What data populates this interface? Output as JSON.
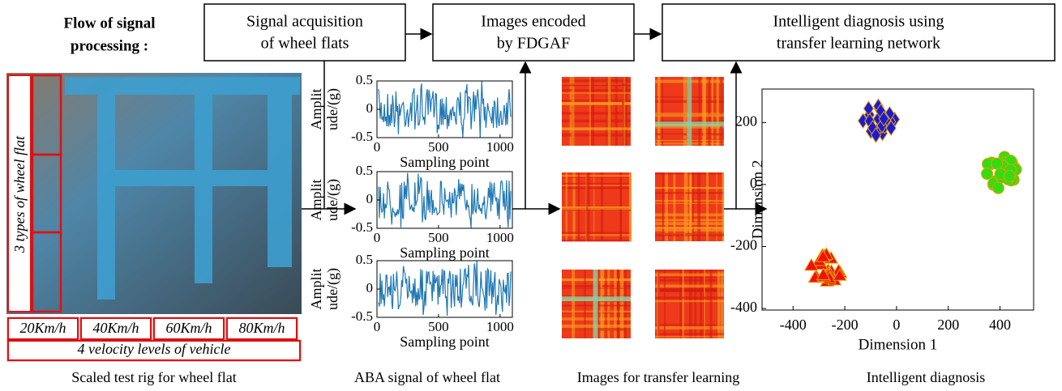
{
  "flow_label": [
    "Flow of signal",
    "processing  :"
  ],
  "steps": [
    {
      "lines": [
        "Signal acquisition",
        "of wheel flats"
      ]
    },
    {
      "lines": [
        "Images encoded",
        "by FDGAF"
      ]
    },
    {
      "lines": [
        "Intelligent diagnosis using",
        "transfer learning network"
      ]
    }
  ],
  "test_rig": {
    "vertical_label": "3 types of wheel flat",
    "speeds": [
      "20Km/h",
      "40Km/h",
      "60Km/h",
      "80Km/h"
    ],
    "speed_caption": "4 velocity levels of vehicle"
  },
  "signal_plots": {
    "ylabel_lines": [
      "Amplit",
      "ude/(g)"
    ],
    "xlabel": "Sampling point",
    "ylim": [
      -0.5,
      0.5
    ],
    "yticks": [
      -0.5,
      0,
      0.5
    ],
    "xlim": [
      0,
      1100
    ],
    "xticks": [
      0,
      500,
      1000
    ]
  },
  "scatter": {
    "xlabel": "Dimension 1",
    "ylabel": "Dimension 2",
    "xlim": [
      -520,
      530
    ],
    "ylim": [
      -405,
      308
    ],
    "xticks": [
      -400,
      -200,
      0,
      200,
      400
    ],
    "yticks": [
      -400,
      -200,
      0,
      200
    ],
    "clusters": [
      {
        "x": -70,
        "y": 210,
        "color": "#1a1ad6",
        "marker": "diamond"
      },
      {
        "x": 400,
        "y": 40,
        "color": "#33dd11",
        "marker": "circle"
      },
      {
        "x": -270,
        "y": -270,
        "color": "#ee1111",
        "marker": "triangle"
      }
    ]
  },
  "captions": [
    "Scaled test rig for wheel flat",
    "ABA signal of wheel flat",
    "Images for transfer learning",
    "Intelligent diagnosis"
  ]
}
